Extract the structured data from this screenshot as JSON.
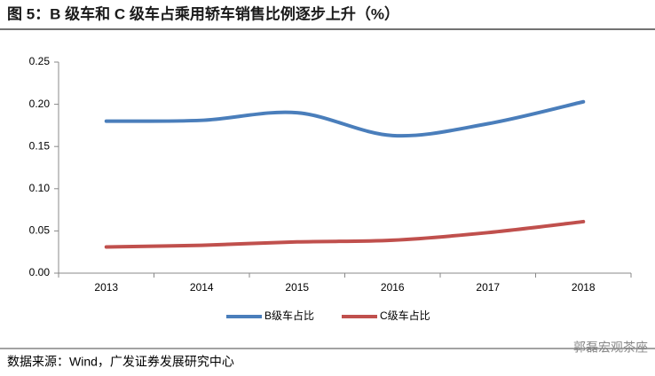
{
  "chart_data": {
    "type": "line",
    "title": "图 5：B 级车和 C 级车占乘用轿车销售比例逐步上升（%）",
    "categories": [
      "2013",
      "2014",
      "2015",
      "2016",
      "2017",
      "2018"
    ],
    "series": [
      {
        "name": "B级车占比",
        "color": "#4a7ebb",
        "values": [
          0.18,
          0.181,
          0.19,
          0.163,
          0.177,
          0.203
        ]
      },
      {
        "name": "C级车占比",
        "color": "#c0504d",
        "values": [
          0.031,
          0.033,
          0.037,
          0.039,
          0.048,
          0.061
        ]
      }
    ],
    "ylim": [
      0,
      0.25
    ],
    "yticks": [
      {
        "value": 0,
        "label": "0.00"
      },
      {
        "value": 0.05,
        "label": "0.05"
      },
      {
        "value": 0.1,
        "label": "0.10"
      },
      {
        "value": 0.15,
        "label": "0.15"
      },
      {
        "value": 0.2,
        "label": "0.20"
      },
      0.25
    ],
    "grid": false,
    "legend": "bottom",
    "source": "数据来源：Wind，广发证券发展研究中心",
    "watermark": "郭磊宏观茶座"
  }
}
